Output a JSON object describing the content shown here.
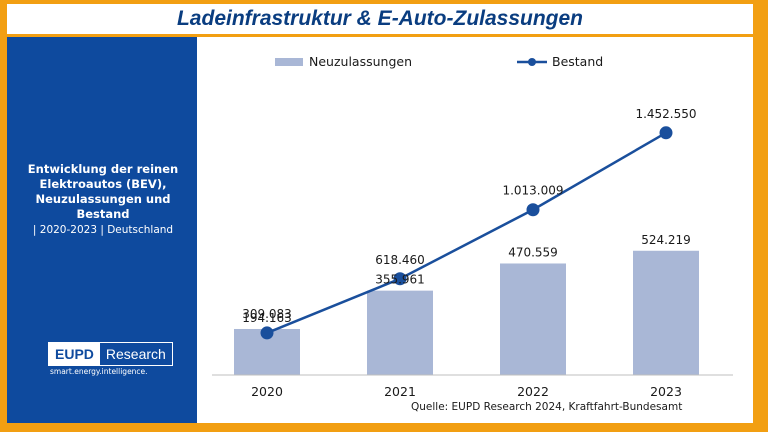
{
  "title": "Ladeinfrastruktur & E-Auto-Zulassungen",
  "sidebar": {
    "heading_lines": [
      "Entwicklung der reinen",
      "Elektroautos (BEV),",
      "Neuzulassungen und",
      "Bestand"
    ],
    "subtitle": "| 2020-2023 | Deutschland",
    "logo_left": "EUPD",
    "logo_right": "Research",
    "tagline": "smart.energy.intelligence."
  },
  "colors": {
    "frame": "#f29f12",
    "navy": "#0e4a9e",
    "bar": "#a9b7d6",
    "line": "#1a4f9c"
  },
  "source": "Quelle: EUPD Research 2024, Kraftfahrt-Bundesamt",
  "chart_data": {
    "type": "bar",
    "categories": [
      "2020",
      "2021",
      "2022",
      "2023"
    ],
    "series": [
      {
        "name": "Neuzulassungen",
        "type": "bar",
        "values": [
          194163,
          355961,
          470559,
          524219
        ],
        "labels": [
          "194.163",
          "355.961",
          "470.559",
          "524.219"
        ]
      },
      {
        "name": "Bestand",
        "type": "line",
        "values": [
          309083,
          618460,
          1013009,
          1452550
        ],
        "labels": [
          "309.083",
          "618.460",
          "1.013.009",
          "1.452.550"
        ]
      }
    ],
    "legend_position": "top",
    "grid": false
  }
}
